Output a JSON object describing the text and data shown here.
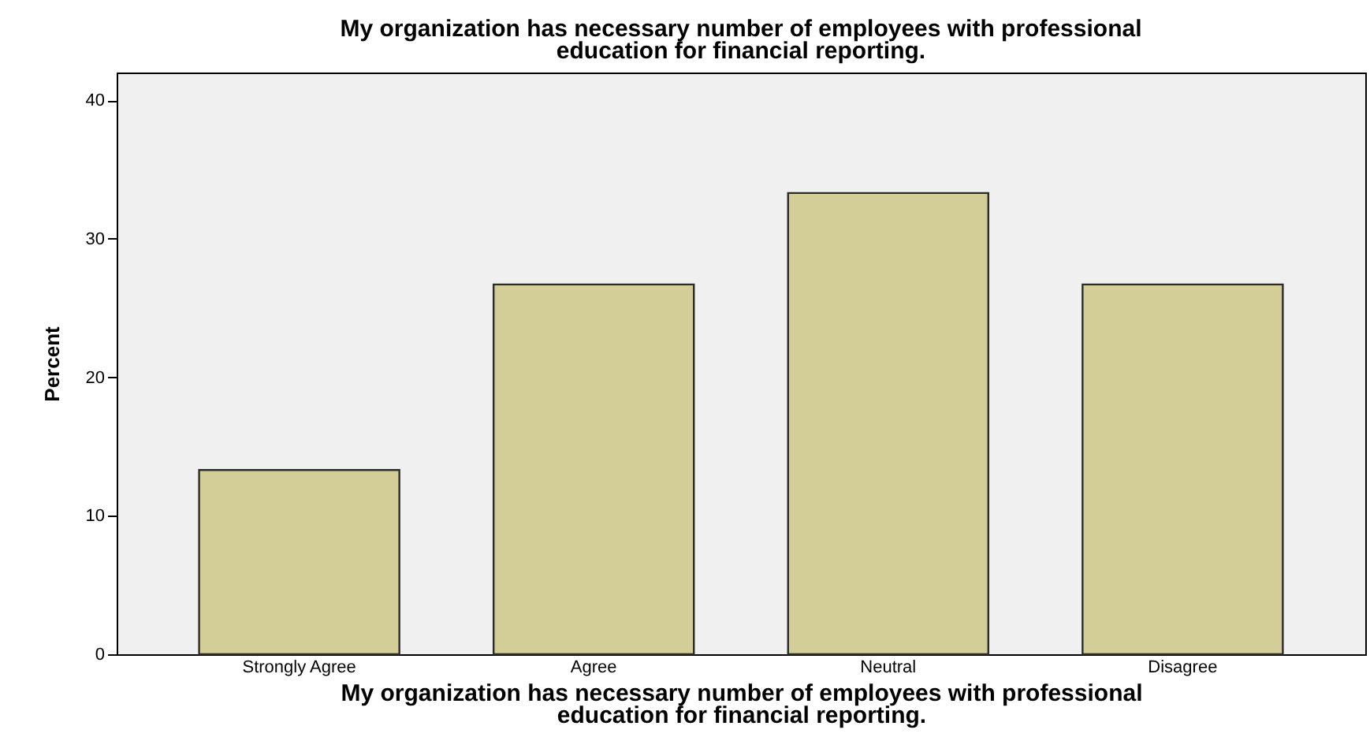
{
  "chart_data": {
    "type": "bar",
    "title": "My organization has necessary number of employees with professional education for financial reporting.",
    "xlabel": "My organization has necessary number of employees with professional education for financial reporting.",
    "ylabel": "Percent",
    "categories": [
      "Strongly Agree",
      "Agree",
      "Neutral",
      "Disagree"
    ],
    "values": [
      13.3,
      26.7,
      33.3,
      26.7
    ],
    "color": "#d3ce97",
    "ylim": [
      0,
      42
    ],
    "yticks": [
      0,
      10,
      20,
      30,
      40
    ],
    "grid": false
  }
}
